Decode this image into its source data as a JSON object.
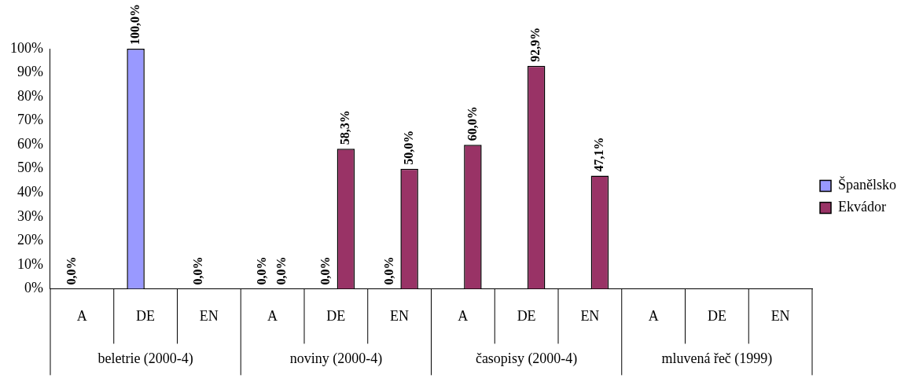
{
  "chart_data": {
    "type": "bar",
    "categories": [
      "A",
      "DE",
      "EN",
      "A",
      "DE",
      "EN",
      "A",
      "DE",
      "EN",
      "A",
      "DE",
      "EN"
    ],
    "annotations": [
      "beletrie (2000-4)",
      "noviny (2000-4)",
      "časopisy (2000-4)",
      "mluvená řeč (1999)"
    ],
    "series": [
      {
        "name": "Španělsko",
        "color": "#9999ff",
        "values": [
          0,
          100,
          0,
          0,
          0,
          0,
          null,
          null,
          null,
          null,
          null,
          null
        ],
        "value_labels": [
          "0,0%",
          "100,0%",
          "0,0%",
          "0,0%",
          "0,0%",
          "0,0%",
          null,
          null,
          null,
          null,
          null,
          null
        ]
      },
      {
        "name": "Ekvádor",
        "color": "#993366",
        "values": [
          null,
          null,
          null,
          0,
          58.3,
          50,
          60,
          92.9,
          47.1,
          null,
          null,
          null
        ],
        "value_labels": [
          null,
          null,
          null,
          "0,0%",
          "58,3%",
          "50,0%",
          "60,0%",
          "92,9%",
          "47,1%",
          null,
          null,
          null
        ]
      }
    ],
    "ylim": [
      0,
      100
    ],
    "yticks": [
      {
        "value": 0,
        "label": "0%"
      },
      {
        "value": 10,
        "label": "10%"
      },
      {
        "value": 20,
        "label": "20%"
      },
      {
        "value": 30,
        "label": "30%"
      },
      {
        "value": 40,
        "label": "40%"
      },
      {
        "value": 50,
        "label": "50%"
      },
      {
        "value": 60,
        "label": "60%"
      },
      {
        "value": 70,
        "label": "70%"
      },
      {
        "value": 80,
        "label": "80%"
      },
      {
        "value": 90,
        "label": "90%"
      },
      {
        "value": 100,
        "label": "100%"
      }
    ],
    "grid": false,
    "legend": "right"
  }
}
